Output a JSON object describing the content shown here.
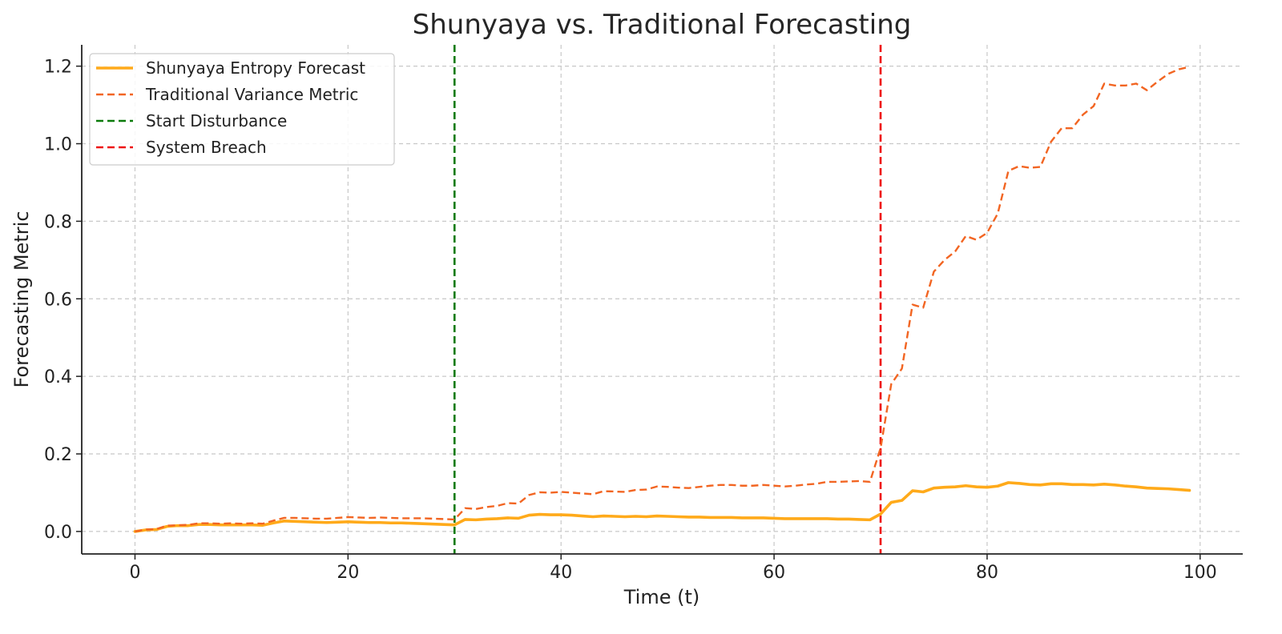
{
  "chart_data": {
    "type": "line",
    "title": "Shunyaya vs. Traditional Forecasting",
    "xlabel": "Time (t)",
    "ylabel": "Forecasting Metric",
    "xlim": [
      -5,
      104
    ],
    "ylim": [
      -0.058,
      1.255
    ],
    "x_ticks": [
      0,
      20,
      40,
      60,
      80,
      100
    ],
    "y_ticks": [
      0.0,
      0.2,
      0.4,
      0.6,
      0.8,
      1.0,
      1.2
    ],
    "x_tick_labels": [
      "0",
      "20",
      "40",
      "60",
      "80",
      "100"
    ],
    "y_tick_labels": [
      "0.0",
      "0.2",
      "0.4",
      "0.6",
      "0.8",
      "1.0",
      "1.2"
    ],
    "grid": true,
    "legend_position": "top-left",
    "series": [
      {
        "name": "Shunyaya Entropy Forecast",
        "style": "solid",
        "color": "#ffaa1a",
        "points": [
          [
            0,
            0.0
          ],
          [
            1,
            0.004
          ],
          [
            2,
            0.005
          ],
          [
            3,
            0.013
          ],
          [
            4,
            0.015
          ],
          [
            5,
            0.015
          ],
          [
            6,
            0.018
          ],
          [
            7,
            0.018
          ],
          [
            8,
            0.017
          ],
          [
            9,
            0.017
          ],
          [
            10,
            0.017
          ],
          [
            11,
            0.017
          ],
          [
            12,
            0.016
          ],
          [
            13,
            0.022
          ],
          [
            14,
            0.027
          ],
          [
            15,
            0.026
          ],
          [
            16,
            0.025
          ],
          [
            17,
            0.024
          ],
          [
            18,
            0.023
          ],
          [
            19,
            0.024
          ],
          [
            20,
            0.025
          ],
          [
            21,
            0.024
          ],
          [
            22,
            0.023
          ],
          [
            23,
            0.023
          ],
          [
            24,
            0.022
          ],
          [
            25,
            0.022
          ],
          [
            26,
            0.021
          ],
          [
            27,
            0.02
          ],
          [
            28,
            0.019
          ],
          [
            29,
            0.018
          ],
          [
            30,
            0.017
          ],
          [
            31,
            0.031
          ],
          [
            32,
            0.03
          ],
          [
            33,
            0.032
          ],
          [
            34,
            0.033
          ],
          [
            35,
            0.035
          ],
          [
            36,
            0.034
          ],
          [
            37,
            0.042
          ],
          [
            38,
            0.044
          ],
          [
            39,
            0.043
          ],
          [
            40,
            0.043
          ],
          [
            41,
            0.042
          ],
          [
            42,
            0.04
          ],
          [
            43,
            0.038
          ],
          [
            44,
            0.04
          ],
          [
            45,
            0.039
          ],
          [
            46,
            0.038
          ],
          [
            47,
            0.039
          ],
          [
            48,
            0.038
          ],
          [
            49,
            0.04
          ],
          [
            50,
            0.039
          ],
          [
            51,
            0.038
          ],
          [
            52,
            0.037
          ],
          [
            53,
            0.037
          ],
          [
            54,
            0.036
          ],
          [
            55,
            0.036
          ],
          [
            56,
            0.036
          ],
          [
            57,
            0.035
          ],
          [
            58,
            0.035
          ],
          [
            59,
            0.035
          ],
          [
            60,
            0.034
          ],
          [
            61,
            0.033
          ],
          [
            62,
            0.033
          ],
          [
            63,
            0.033
          ],
          [
            64,
            0.033
          ],
          [
            65,
            0.033
          ],
          [
            66,
            0.032
          ],
          [
            67,
            0.032
          ],
          [
            68,
            0.031
          ],
          [
            69,
            0.03
          ],
          [
            70,
            0.045
          ],
          [
            71,
            0.075
          ],
          [
            72,
            0.08
          ],
          [
            73,
            0.105
          ],
          [
            74,
            0.102
          ],
          [
            75,
            0.112
          ],
          [
            76,
            0.114
          ],
          [
            77,
            0.115
          ],
          [
            78,
            0.118
          ],
          [
            79,
            0.115
          ],
          [
            80,
            0.114
          ],
          [
            81,
            0.117
          ],
          [
            82,
            0.126
          ],
          [
            83,
            0.124
          ],
          [
            84,
            0.121
          ],
          [
            85,
            0.12
          ],
          [
            86,
            0.123
          ],
          [
            87,
            0.123
          ],
          [
            88,
            0.121
          ],
          [
            89,
            0.121
          ],
          [
            90,
            0.12
          ],
          [
            91,
            0.122
          ],
          [
            92,
            0.12
          ],
          [
            93,
            0.117
          ],
          [
            94,
            0.115
          ],
          [
            95,
            0.112
          ],
          [
            96,
            0.111
          ],
          [
            97,
            0.11
          ],
          [
            98,
            0.108
          ],
          [
            99,
            0.106
          ]
        ]
      },
      {
        "name": "Traditional Variance Metric",
        "style": "dashed",
        "color": "#f26522",
        "points": [
          [
            0,
            0.0
          ],
          [
            1,
            0.005
          ],
          [
            2,
            0.006
          ],
          [
            3,
            0.015
          ],
          [
            4,
            0.016
          ],
          [
            5,
            0.017
          ],
          [
            6,
            0.021
          ],
          [
            7,
            0.021
          ],
          [
            8,
            0.02
          ],
          [
            9,
            0.021
          ],
          [
            10,
            0.02
          ],
          [
            11,
            0.021
          ],
          [
            12,
            0.02
          ],
          [
            13,
            0.028
          ],
          [
            14,
            0.035
          ],
          [
            15,
            0.035
          ],
          [
            16,
            0.034
          ],
          [
            17,
            0.033
          ],
          [
            18,
            0.033
          ],
          [
            19,
            0.035
          ],
          [
            20,
            0.037
          ],
          [
            21,
            0.036
          ],
          [
            22,
            0.035
          ],
          [
            23,
            0.036
          ],
          [
            24,
            0.035
          ],
          [
            25,
            0.034
          ],
          [
            26,
            0.034
          ],
          [
            27,
            0.034
          ],
          [
            28,
            0.033
          ],
          [
            29,
            0.032
          ],
          [
            30,
            0.031
          ],
          [
            31,
            0.06
          ],
          [
            32,
            0.058
          ],
          [
            33,
            0.063
          ],
          [
            34,
            0.066
          ],
          [
            35,
            0.073
          ],
          [
            36,
            0.072
          ],
          [
            37,
            0.094
          ],
          [
            38,
            0.101
          ],
          [
            39,
            0.1
          ],
          [
            40,
            0.102
          ],
          [
            41,
            0.1
          ],
          [
            42,
            0.098
          ],
          [
            43,
            0.096
          ],
          [
            44,
            0.104
          ],
          [
            45,
            0.103
          ],
          [
            46,
            0.102
          ],
          [
            47,
            0.107
          ],
          [
            48,
            0.108
          ],
          [
            49,
            0.116
          ],
          [
            50,
            0.115
          ],
          [
            51,
            0.113
          ],
          [
            52,
            0.112
          ],
          [
            53,
            0.115
          ],
          [
            54,
            0.118
          ],
          [
            55,
            0.12
          ],
          [
            56,
            0.12
          ],
          [
            57,
            0.118
          ],
          [
            58,
            0.118
          ],
          [
            59,
            0.12
          ],
          [
            60,
            0.118
          ],
          [
            61,
            0.116
          ],
          [
            62,
            0.118
          ],
          [
            63,
            0.121
          ],
          [
            64,
            0.123
          ],
          [
            65,
            0.128
          ],
          [
            66,
            0.128
          ],
          [
            67,
            0.129
          ],
          [
            68,
            0.13
          ],
          [
            69,
            0.128
          ],
          [
            70,
            0.215
          ],
          [
            71,
            0.38
          ],
          [
            72,
            0.42
          ],
          [
            73,
            0.585
          ],
          [
            74,
            0.577
          ],
          [
            75,
            0.67
          ],
          [
            76,
            0.7
          ],
          [
            77,
            0.722
          ],
          [
            78,
            0.762
          ],
          [
            79,
            0.752
          ],
          [
            80,
            0.77
          ],
          [
            81,
            0.82
          ],
          [
            82,
            0.93
          ],
          [
            83,
            0.942
          ],
          [
            84,
            0.938
          ],
          [
            85,
            0.94
          ],
          [
            86,
            1.005
          ],
          [
            87,
            1.04
          ],
          [
            88,
            1.04
          ],
          [
            89,
            1.075
          ],
          [
            90,
            1.097
          ],
          [
            91,
            1.155
          ],
          [
            92,
            1.15
          ],
          [
            93,
            1.15
          ],
          [
            94,
            1.155
          ],
          [
            95,
            1.138
          ],
          [
            96,
            1.16
          ],
          [
            97,
            1.18
          ],
          [
            98,
            1.192
          ],
          [
            99,
            1.198
          ]
        ]
      }
    ],
    "vlines": [
      {
        "name": "Start Disturbance",
        "x": 30,
        "color": "#0a7a0a",
        "style": "dashed"
      },
      {
        "name": "System Breach",
        "x": 70,
        "color": "#ee1111",
        "style": "dashed"
      }
    ]
  }
}
